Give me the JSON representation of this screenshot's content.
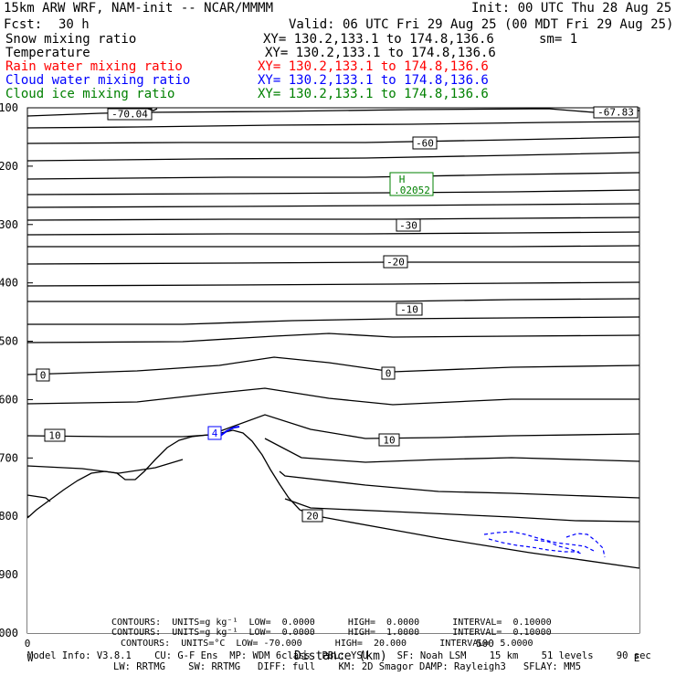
{
  "header": {
    "model": "15km ARW WRF, NAM-init -- NCAR/MMMM",
    "init": "Init: 00 UTC Thu 28 Aug 25",
    "fcst_label": "Fcst:",
    "fcst_value": "30 h",
    "valid": "Valid: 06 UTC Fri 29 Aug 25 (00 MDT Fri 29 Aug 25)",
    "rows": [
      {
        "name": "Snow mixing ratio",
        "xy": "XY= 130.2,133.1 to 174.8,136.6",
        "extra": "sm= 1",
        "color": "#000000"
      },
      {
        "name": "Temperature",
        "xy": "XY= 130.2,133.1 to 174.8,136.6",
        "extra": "",
        "color": "#000000"
      },
      {
        "name": "Rain water mixing ratio",
        "xy": "XY= 130.2,133.1 to 174.8,136.6",
        "extra": "",
        "color": "#ff0000"
      },
      {
        "name": "Cloud water mixing ratio",
        "xy": "XY= 130.2,133.1 to 174.8,136.6",
        "extra": "",
        "color": "#0000ff"
      },
      {
        "name": "Cloud ice mixing ratio",
        "xy": "XY= 130.2,133.1 to 174.8,136.6",
        "extra": "",
        "color": "#008000"
      }
    ]
  },
  "chart_data": {
    "type": "cross-section contour",
    "xlabel": "Distance (km)",
    "x_ticks": [
      "0",
      "500"
    ],
    "x_end_label": "E",
    "x_start_label": "W",
    "y_ticks": [
      "100",
      "200",
      "300",
      "400",
      "500",
      "600",
      "700",
      "800",
      "900",
      "1000"
    ],
    "ylim": [
      100,
      1000
    ],
    "temperature_contour_labels": [
      {
        "text": "-70.04",
        "kind": "low"
      },
      {
        "text": "-67.83",
        "kind": "low"
      },
      {
        "text": "-60",
        "kind": "contour"
      },
      {
        "text": "-30",
        "kind": "contour"
      },
      {
        "text": "-20",
        "kind": "contour"
      },
      {
        "text": "-10",
        "kind": "contour"
      },
      {
        "text": "0",
        "kind": "contour"
      },
      {
        "text": "0",
        "kind": "contour"
      },
      {
        "text": "10",
        "kind": "contour"
      },
      {
        "text": "10",
        "kind": "contour"
      },
      {
        "text": "20",
        "kind": "contour"
      }
    ],
    "high_marker": {
      "letter": "H",
      "value": ".02052",
      "color": "#008000"
    },
    "cloud_water_label": {
      "text": "4",
      "color": "#0000ff"
    },
    "footer_contours": [
      {
        "text": "CONTOURS:  UNITS=g kg⁻¹  LOW=  0.0000      HIGH=  0.0000      INTERVAL=  0.10000",
        "color": "#008000"
      },
      {
        "text": "CONTOURS:  UNITS=g kg⁻¹  LOW=  0.0000      HIGH=  1.0000      INTERVAL=  0.10000",
        "color": "#0000ff"
      },
      {
        "text": "CONTOURS:  UNITS=°C  LOW= -70.000      HIGH=  20.000      INTERVAL=  5.0000",
        "color": "#000000"
      }
    ]
  },
  "footer": {
    "line1": "Model Info: V3.8.1    CU: G-F Ens  MP: WDM 6class  PBL: YSU     SF: Noah LSM    15 km    51 levels    90 sec",
    "line2": "LW: RRTMG    SW: RRTMG   DIFF: full    KM: 2D Smagor DAMP: Rayleigh3   SFLAY: MM5"
  }
}
